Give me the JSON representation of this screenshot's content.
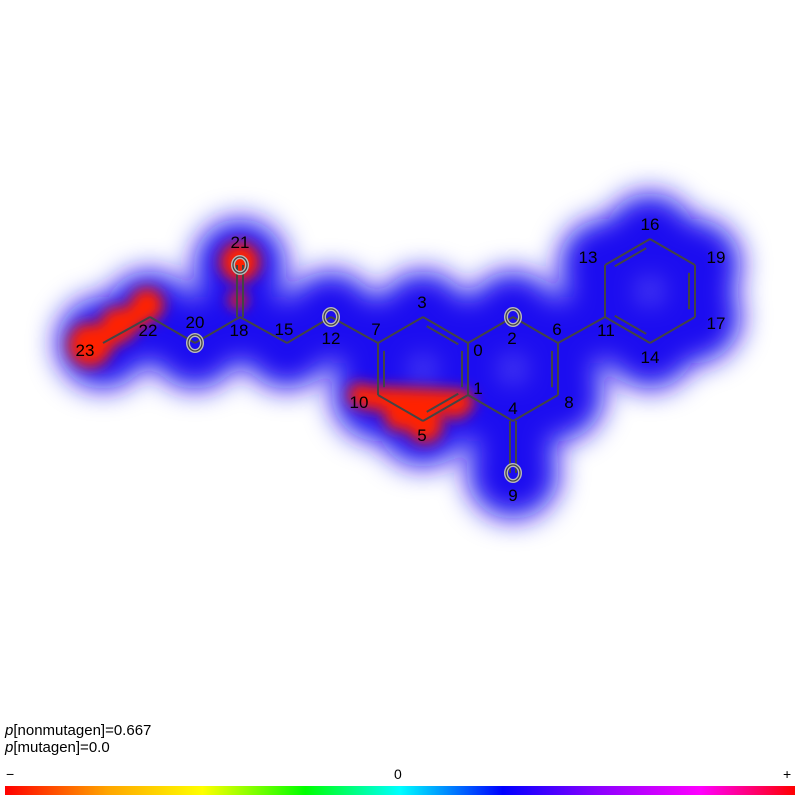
{
  "probabilities": {
    "nonmutagen_label": "p",
    "nonmutagen_text": "[nonmutagen]=0.667",
    "mutagen_label": "p",
    "mutagen_text": "[mutagen]=0.0"
  },
  "scale": {
    "min_label": "−",
    "mid_label": "0",
    "max_label": "+"
  },
  "colors": {
    "bond": "#444444",
    "positive": "#ff2000",
    "negative": "#1a10f0",
    "neutral": "#ffffff"
  },
  "atoms": [
    {
      "id": "0",
      "symbol": "C"
    },
    {
      "id": "1",
      "symbol": "C"
    },
    {
      "id": "2",
      "symbol": "O"
    },
    {
      "id": "3",
      "symbol": "C"
    },
    {
      "id": "4",
      "symbol": "C"
    },
    {
      "id": "5",
      "symbol": "C"
    },
    {
      "id": "6",
      "symbol": "C"
    },
    {
      "id": "7",
      "symbol": "C"
    },
    {
      "id": "8",
      "symbol": "C"
    },
    {
      "id": "9",
      "symbol": "O"
    },
    {
      "id": "10",
      "symbol": "C"
    },
    {
      "id": "11",
      "symbol": "C"
    },
    {
      "id": "12",
      "symbol": "O"
    },
    {
      "id": "13",
      "symbol": "C"
    },
    {
      "id": "14",
      "symbol": "C"
    },
    {
      "id": "15",
      "symbol": "C"
    },
    {
      "id": "16",
      "symbol": "C"
    },
    {
      "id": "17",
      "symbol": "C"
    },
    {
      "id": "18",
      "symbol": "C"
    },
    {
      "id": "19",
      "symbol": "C"
    },
    {
      "id": "20",
      "symbol": "O"
    },
    {
      "id": "21",
      "symbol": "O"
    },
    {
      "id": "22",
      "symbol": "C"
    },
    {
      "id": "23",
      "symbol": "C"
    }
  ]
}
